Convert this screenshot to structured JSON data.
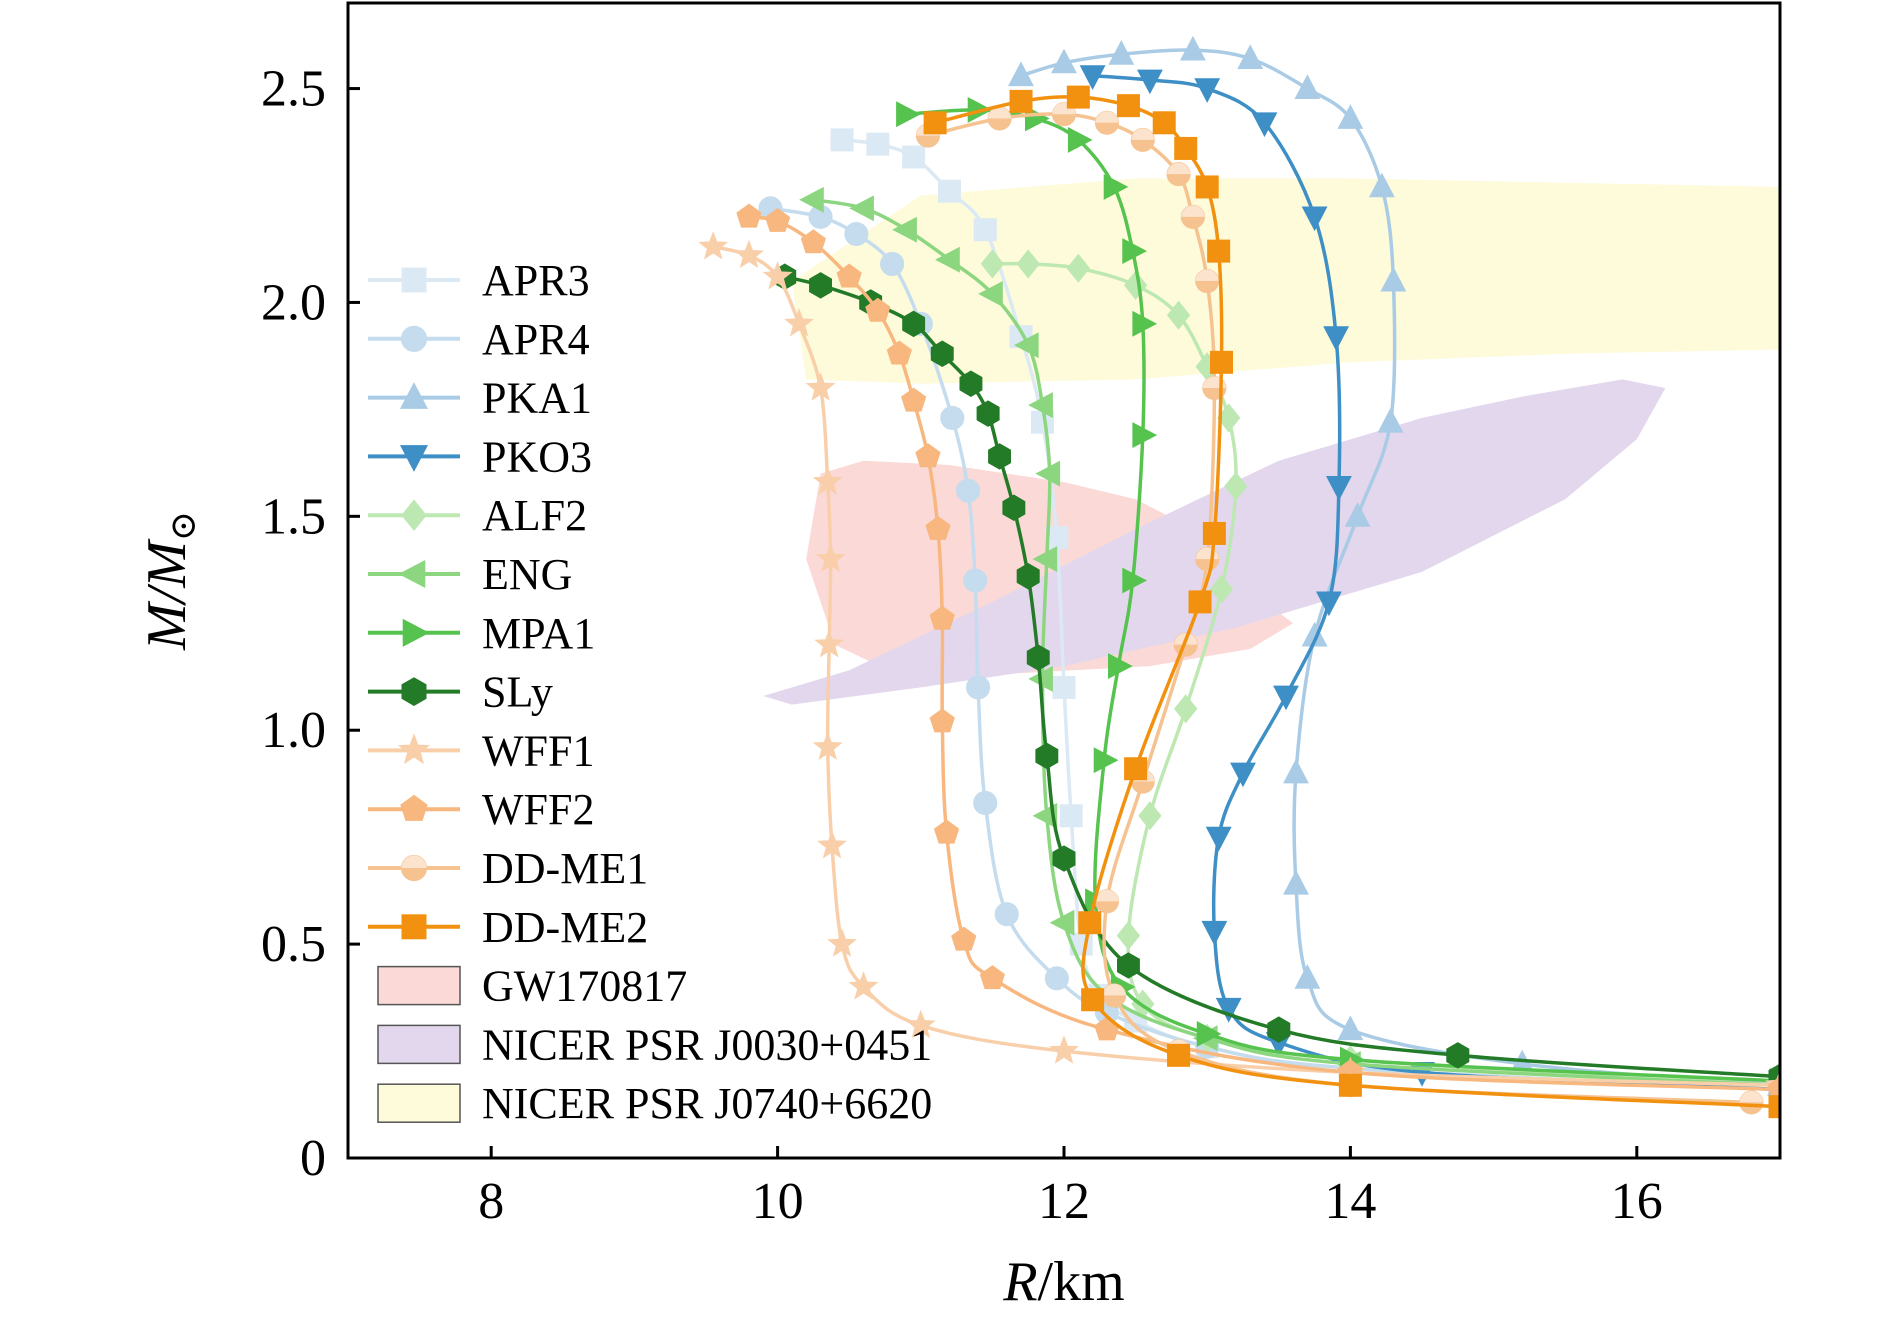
{
  "chart_data": {
    "type": "line",
    "title": "",
    "xlabel": "R/km",
    "ylabel": "M/M⊙",
    "xlim": [
      7,
      17
    ],
    "ylim": [
      0,
      2.7
    ],
    "x_ticks": [
      8,
      10,
      12,
      14,
      16
    ],
    "y_ticks": [
      0,
      0.5,
      1.0,
      1.5,
      2.0,
      2.5
    ],
    "x_tick_labels": [
      "8",
      "10",
      "12",
      "14",
      "16"
    ],
    "y_tick_labels": [
      "0",
      "0.5",
      "1.0",
      "1.5",
      "2.0",
      "2.5"
    ],
    "grid": false,
    "legend_position": "left",
    "series": [
      {
        "name": "APR3",
        "color": "#dbe9f4",
        "marker": "square",
        "x": [
          17.0,
          14.0,
          13.0,
          12.5,
          12.25,
          12.12,
          12.05,
          12.0,
          11.95,
          11.85,
          11.7,
          11.45,
          11.2,
          10.95,
          10.7,
          10.45
        ],
        "y": [
          0.16,
          0.21,
          0.26,
          0.32,
          0.38,
          0.5,
          0.8,
          1.1,
          1.45,
          1.72,
          1.92,
          2.17,
          2.26,
          2.34,
          2.37,
          2.38
        ]
      },
      {
        "name": "APR4",
        "color": "#c4dcee",
        "marker": "circle",
        "x": [
          17.0,
          14.0,
          13.0,
          12.3,
          11.95,
          11.6,
          11.45,
          11.4,
          11.38,
          11.33,
          11.22,
          11.0,
          10.8,
          10.55,
          10.3,
          9.95
        ],
        "y": [
          0.16,
          0.21,
          0.26,
          0.34,
          0.42,
          0.57,
          0.83,
          1.1,
          1.35,
          1.56,
          1.73,
          1.95,
          2.09,
          2.16,
          2.2,
          2.22
        ]
      },
      {
        "name": "PKA1",
        "color": "#a9cbe5",
        "marker": "triangle-up",
        "x": [
          17.0,
          15.2,
          14.0,
          13.7,
          13.62,
          13.62,
          13.75,
          14.05,
          14.28,
          14.3,
          14.22,
          14.0,
          13.7,
          13.3,
          12.9,
          12.4,
          12.0,
          11.7
        ],
        "y": [
          0.17,
          0.22,
          0.3,
          0.42,
          0.64,
          0.9,
          1.22,
          1.5,
          1.72,
          2.05,
          2.27,
          2.43,
          2.5,
          2.57,
          2.59,
          2.58,
          2.56,
          2.53
        ]
      },
      {
        "name": "PKO3",
        "color": "#3d8fc6",
        "marker": "triangle-down",
        "x": [
          17.0,
          14.5,
          13.5,
          13.15,
          13.05,
          13.08,
          13.25,
          13.55,
          13.85,
          13.92,
          13.9,
          13.75,
          13.4,
          13.0,
          12.6,
          12.2
        ],
        "y": [
          0.16,
          0.2,
          0.27,
          0.35,
          0.53,
          0.75,
          0.9,
          1.08,
          1.3,
          1.57,
          1.92,
          2.2,
          2.42,
          2.5,
          2.52,
          2.53
        ]
      },
      {
        "name": "ALF2",
        "color": "#bde8b2",
        "marker": "diamond",
        "x": [
          17.0,
          14.0,
          13.0,
          12.55,
          12.45,
          12.6,
          12.85,
          13.1,
          13.2,
          13.15,
          13.0,
          12.8,
          12.5,
          12.1,
          11.75,
          11.5
        ],
        "y": [
          0.17,
          0.23,
          0.28,
          0.36,
          0.52,
          0.8,
          1.05,
          1.33,
          1.57,
          1.73,
          1.85,
          1.97,
          2.04,
          2.08,
          2.09,
          2.09
        ]
      },
      {
        "name": "ENG",
        "color": "#8bd67f",
        "marker": "triangle-left",
        "x": [
          17.0,
          14.0,
          13.0,
          12.3,
          12.0,
          11.88,
          11.85,
          11.88,
          11.9,
          11.85,
          11.75,
          11.5,
          11.2,
          10.9,
          10.6,
          10.25
        ],
        "y": [
          0.17,
          0.22,
          0.28,
          0.38,
          0.55,
          0.8,
          1.12,
          1.4,
          1.6,
          1.76,
          1.9,
          2.02,
          2.1,
          2.17,
          2.22,
          2.24
        ]
      },
      {
        "name": "MPA1",
        "color": "#55c34e",
        "marker": "triangle-right",
        "x": [
          17.0,
          14.0,
          13.0,
          12.4,
          12.22,
          12.28,
          12.38,
          12.48,
          12.55,
          12.55,
          12.48,
          12.35,
          12.1,
          11.8,
          11.4,
          10.9
        ],
        "y": [
          0.18,
          0.23,
          0.29,
          0.4,
          0.6,
          0.93,
          1.15,
          1.35,
          1.69,
          1.95,
          2.12,
          2.27,
          2.38,
          2.43,
          2.45,
          2.44
        ]
      },
      {
        "name": "SLy",
        "color": "#237a27",
        "marker": "hexagon",
        "x": [
          17.0,
          14.75,
          13.5,
          12.45,
          12.0,
          11.88,
          11.82,
          11.75,
          11.65,
          11.55,
          11.47,
          11.35,
          11.15,
          10.95,
          10.65,
          10.3,
          10.05
        ],
        "y": [
          0.19,
          0.24,
          0.3,
          0.45,
          0.7,
          0.94,
          1.17,
          1.36,
          1.52,
          1.64,
          1.74,
          1.81,
          1.88,
          1.95,
          2.0,
          2.04,
          2.06
        ]
      },
      {
        "name": "WFF1",
        "color": "#f9cfaa",
        "marker": "star",
        "x": [
          17.0,
          14.0,
          12.0,
          11.0,
          10.6,
          10.45,
          10.38,
          10.35,
          10.36,
          10.37,
          10.35,
          10.3,
          10.15,
          10.0,
          9.8,
          9.55
        ],
        "y": [
          0.17,
          0.2,
          0.25,
          0.31,
          0.4,
          0.5,
          0.73,
          0.96,
          1.2,
          1.4,
          1.58,
          1.8,
          1.95,
          2.06,
          2.11,
          2.13
        ]
      },
      {
        "name": "WFF2",
        "color": "#f7b77e",
        "marker": "pentagon",
        "x": [
          17.0,
          14.0,
          12.3,
          11.5,
          11.3,
          11.18,
          11.15,
          11.15,
          11.12,
          11.05,
          10.95,
          10.85,
          10.7,
          10.5,
          10.25,
          10.0,
          9.8
        ],
        "y": [
          0.16,
          0.2,
          0.3,
          0.42,
          0.51,
          0.76,
          1.02,
          1.26,
          1.47,
          1.64,
          1.77,
          1.88,
          1.98,
          2.06,
          2.14,
          2.19,
          2.2
        ]
      },
      {
        "name": "DD-ME1",
        "color": "#f5c290",
        "marker": "circle-half",
        "x": [
          16.8,
          14.0,
          12.8,
          12.35,
          12.3,
          12.55,
          12.85,
          13.0,
          13.05,
          13.0,
          12.9,
          12.8,
          12.55,
          12.3,
          12.0,
          11.55,
          11.05
        ],
        "y": [
          0.13,
          0.17,
          0.25,
          0.38,
          0.6,
          0.88,
          1.2,
          1.4,
          1.8,
          2.05,
          2.2,
          2.3,
          2.38,
          2.42,
          2.44,
          2.43,
          2.39
        ]
      },
      {
        "name": "DD-ME2",
        "color": "#f2910f",
        "marker": "square",
        "x": [
          17.0,
          14.0,
          12.8,
          12.2,
          12.18,
          12.5,
          12.95,
          13.05,
          13.1,
          13.08,
          13.0,
          12.85,
          12.7,
          12.45,
          12.1,
          11.7,
          11.1
        ],
        "y": [
          0.12,
          0.17,
          0.24,
          0.37,
          0.55,
          0.91,
          1.3,
          1.46,
          1.86,
          2.12,
          2.27,
          2.36,
          2.42,
          2.46,
          2.48,
          2.47,
          2.42
        ]
      }
    ],
    "regions": [
      {
        "name": "GW170817",
        "color": "#fad9d6",
        "x": [
          10.3,
          10.6,
          11.2,
          12.0,
          12.5,
          13.2,
          13.4,
          13.6,
          13.3,
          12.6,
          11.5,
          10.9,
          10.4,
          10.2
        ],
        "y": [
          1.6,
          1.63,
          1.62,
          1.58,
          1.54,
          1.42,
          1.3,
          1.25,
          1.19,
          1.15,
          1.13,
          1.12,
          1.2,
          1.4
        ]
      },
      {
        "name": "NICER PSR J0030+0451",
        "color": "#e3d7ee",
        "x": [
          10.1,
          11.0,
          12.0,
          13.2,
          14.5,
          15.5,
          16.0,
          16.2,
          15.9,
          15.2,
          14.5,
          13.5,
          12.5,
          11.5,
          10.5,
          9.9
        ],
        "y": [
          1.06,
          1.1,
          1.15,
          1.24,
          1.37,
          1.54,
          1.68,
          1.8,
          1.82,
          1.78,
          1.73,
          1.63,
          1.47,
          1.3,
          1.14,
          1.08
        ]
      },
      {
        "name": "NICER PSR J0740+6620",
        "color": "#fdfbda",
        "x": [
          10.2,
          11.0,
          12.5,
          14.0,
          15.5,
          17.0,
          17.0,
          15.5,
          14.0,
          12.5,
          11.0,
          10.1
        ],
        "y": [
          1.82,
          1.81,
          1.82,
          1.86,
          1.88,
          1.89,
          2.27,
          2.28,
          2.29,
          2.29,
          2.25,
          2.05
        ]
      }
    ]
  }
}
